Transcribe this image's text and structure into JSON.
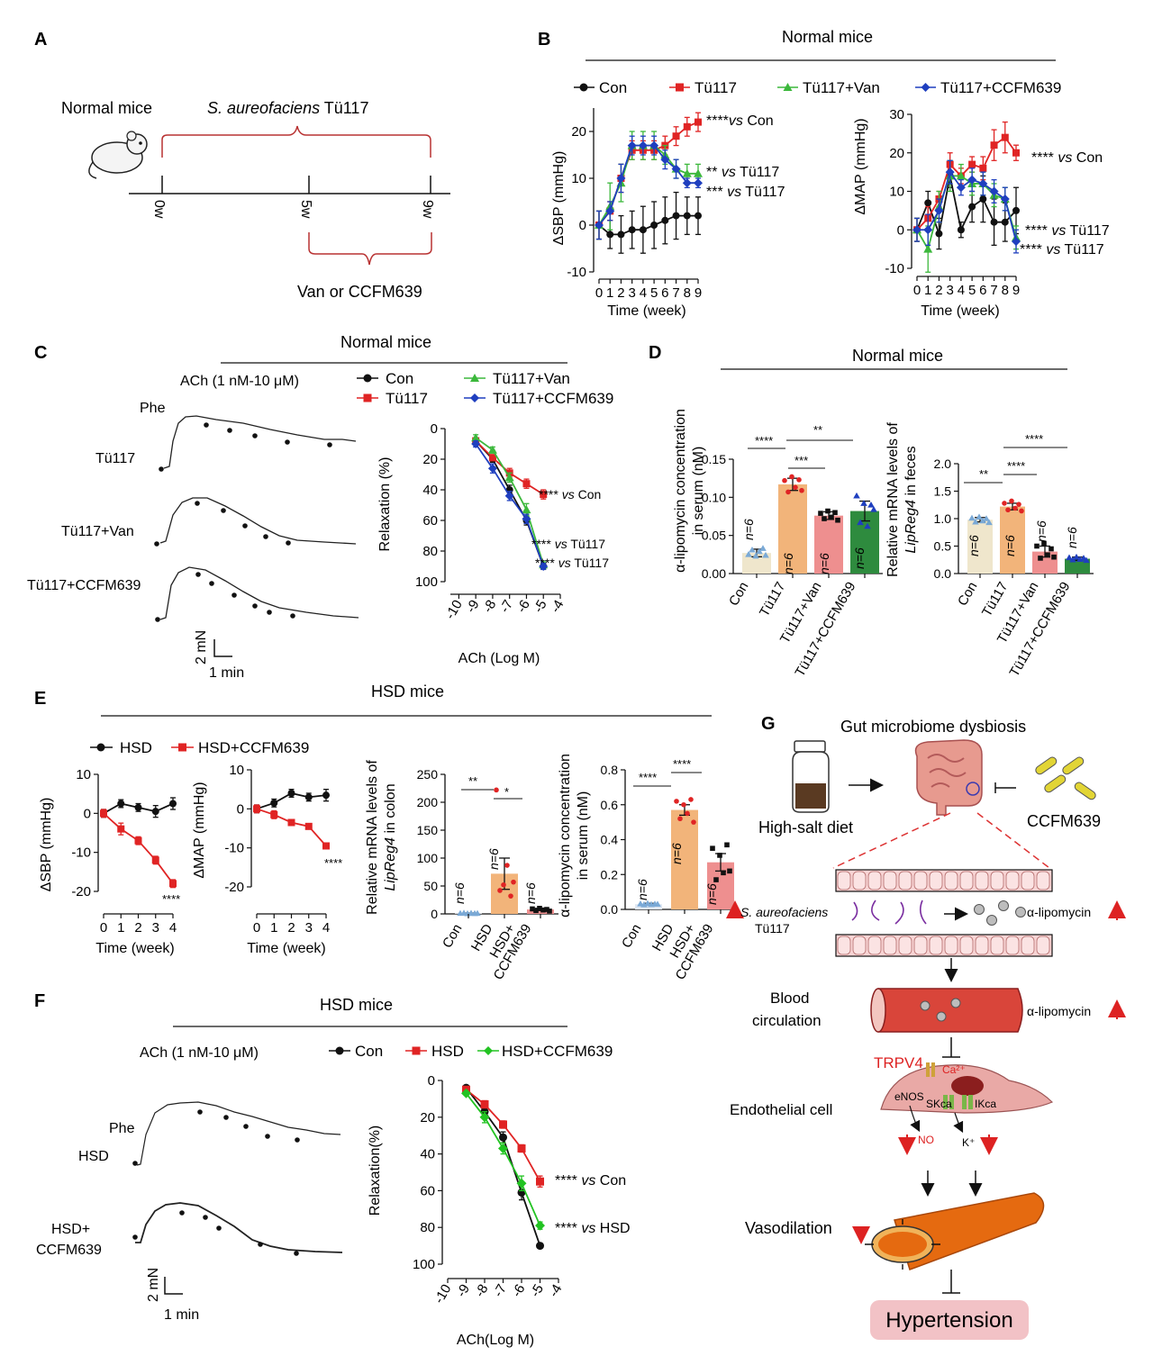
{
  "panel_letters": {
    "a": "A",
    "b": "B",
    "c": "C",
    "d": "D",
    "e": "E",
    "f": "F",
    "g": "G"
  },
  "colors": {
    "con": "#111111",
    "tu117": "#e02424",
    "van": "#3cb83c",
    "ccfm": "#1f3fbf",
    "hsd_ccfm_green": "#22c322",
    "tan": "#f2b47a",
    "pink": "#ee8f8f",
    "green_bar": "#2e8b3e",
    "bar_con": "#efe6cc",
    "bar_con_blue": "#7aa9d6"
  },
  "panelA": {
    "normal_mice": "Normal mice",
    "strain_italic": "S. aureofaciens",
    "strain_id": " Tü117",
    "ticks": [
      "0w",
      "5w",
      "9w"
    ],
    "treatment": "Van or CCFM639"
  },
  "panelB": {
    "title": "Normal mice",
    "legend": [
      "Con",
      "Tü117",
      "Tü117+Van",
      "Tü117+CCFM639"
    ],
    "sbp_ylabel": "ΔSBP (mmHg)",
    "map_ylabel": "ΔMAP (mmHg)",
    "xlabel": "Time (week)",
    "sbp_annotations": [
      {
        "stars": "****",
        "vs": "vs",
        "ref": " Con"
      },
      {
        "stars": "** ",
        "vs": "vs",
        "ref": " Tü117"
      },
      {
        "stars": "*** ",
        "vs": "vs",
        "ref": " Tü117"
      }
    ],
    "map_annotations": [
      {
        "stars": "**** ",
        "vs": "vs",
        "ref": " Con"
      },
      {
        "stars": "**** ",
        "vs": "vs",
        "ref": " Tü117"
      },
      {
        "stars": "**** ",
        "vs": "vs",
        "ref": " Tü117"
      }
    ]
  },
  "panelC": {
    "title": "Normal mice",
    "ach": "ACh (1 nM-10 μM)",
    "phe": "Phe",
    "trace_labels": [
      "Tü117",
      "Tü117+Van",
      "Tü117+CCFM639"
    ],
    "scale_y": "2 mN",
    "scale_x": "1 min",
    "legend": [
      "Con",
      "Tü117",
      "Tü117+Van",
      "Tü117+CCFM639"
    ],
    "ylabel": "Relaxation (%)",
    "xlabel": "ACh (Log M)",
    "annotations": [
      {
        "stars": "**** ",
        "vs": "vs",
        "ref": " Con"
      },
      {
        "stars": "**** ",
        "vs": "vs",
        "ref": " Tü117"
      },
      {
        "stars": "**** ",
        "vs": "vs",
        "ref": " Tü117"
      }
    ]
  },
  "panelD": {
    "title": "Normal mice",
    "serum_ylabel1": "α-lipomycin concentration",
    "serum_ylabel2": "in serum (nM)",
    "feces_ylabel1": "Relative mRNA levels of",
    "feces_ylabel2_italic": "LipReg4",
    "feces_ylabel2_rest": " in feces",
    "groups": [
      "Con",
      "Tü117",
      "Tü117+Van",
      "Tü117+CCFM639"
    ],
    "n_label": "n=6",
    "serum_sig": [
      "****",
      "***",
      "**"
    ],
    "feces_sig": [
      "**",
      "****",
      "****"
    ]
  },
  "panelE": {
    "title": "HSD mice",
    "legend": [
      "HSD",
      "HSD+CCFM639"
    ],
    "sbp_ylabel": "ΔSBP (mmHg)",
    "map_ylabel": "ΔMAP (mmHg)",
    "xlabel": "Time (week)",
    "sig": "****",
    "colon_ylabel1": "Relative mRNA levels of",
    "colon_ylabel2_italic": "LipReg4",
    "colon_ylabel2_rest": " in colon",
    "serum_ylabel1": "α-lipomycin concentration",
    "serum_ylabel2": "in serum (nM)",
    "groups": [
      "Con",
      "HSD",
      "HSD+",
      "CCFM639"
    ],
    "n_label": "n=6",
    "colon_sig": [
      "**",
      "*"
    ],
    "serum_sig": [
      "****",
      "****"
    ]
  },
  "panelF": {
    "title": "HSD mice",
    "ach": "ACh (1 nM-10 μM)",
    "legend": [
      "Con",
      "HSD",
      "HSD+CCFM639"
    ],
    "phe": "Phe",
    "trace_labels": [
      "HSD",
      "HSD+",
      "CCFM639"
    ],
    "scale_y": "2 mN",
    "scale_x": "1 min",
    "ylabel": "Relaxation(%)",
    "xlabel": "ACh(Log M)",
    "annotations": [
      {
        "stars": "**** ",
        "vs": "vs",
        "ref": " Con"
      },
      {
        "stars": "**** ",
        "vs": "vs",
        "ref": " HSD"
      }
    ]
  },
  "panelG": {
    "title": "Gut microbiome dysbiosis",
    "diet": "High-salt diet",
    "probiotic": "CCFM639",
    "strain_italic": "S. aureofaciens",
    "strain_id": "Tü117",
    "lipo": "α-lipomycin",
    "blood": [
      "Blood",
      "circulation"
    ],
    "trpv4": "TRPV4",
    "endo": "Endothelial cell",
    "enos": "eNOS",
    "sk": "SKca",
    "ik": "IKca",
    "no": "NO",
    "k": "K⁺",
    "ca": "Ca²⁺",
    "vaso": "Vasodilation",
    "hyper": "Hypertension"
  },
  "chart_data": [
    {
      "id": "B_SBP",
      "type": "line",
      "title": "Normal mice",
      "xlabel": "Time (week)",
      "ylabel": "ΔSBP (mmHg)",
      "ylim": [
        -10,
        25
      ],
      "xlim": [
        0,
        9
      ],
      "x": [
        0,
        1,
        2,
        3,
        4,
        5,
        6,
        7,
        8,
        9
      ],
      "series": [
        {
          "name": "Con",
          "values": [
            0,
            -2,
            -2,
            -1,
            -1,
            0,
            1,
            2,
            2,
            2
          ],
          "err": [
            3,
            3,
            4,
            4,
            5,
            5,
            5,
            5,
            4,
            4
          ]
        },
        {
          "name": "Tü117",
          "values": [
            0,
            3,
            10,
            16,
            16,
            16,
            17,
            19,
            21,
            22
          ],
          "err": [
            3,
            2,
            3,
            2,
            2,
            2,
            2,
            2,
            2,
            2
          ]
        },
        {
          "name": "Tü117+Van",
          "values": [
            0,
            4,
            9,
            17,
            17,
            17,
            15,
            12,
            11,
            11
          ],
          "err": [
            3,
            5,
            4,
            3,
            3,
            3,
            2,
            2,
            2,
            2
          ]
        },
        {
          "name": "Tü117+CCFM639",
          "values": [
            0,
            3,
            10,
            17,
            17,
            17,
            14,
            12,
            9,
            9
          ],
          "err": [
            3,
            2,
            3,
            2,
            2,
            2,
            2,
            2,
            1,
            1
          ]
        }
      ]
    },
    {
      "id": "B_MAP",
      "type": "line",
      "xlabel": "Time (week)",
      "ylabel": "ΔMAP (mmHg)",
      "ylim": [
        -10,
        30
      ],
      "xlim": [
        0,
        9
      ],
      "x": [
        0,
        1,
        2,
        3,
        4,
        5,
        6,
        7,
        8,
        9
      ],
      "series": [
        {
          "name": "Con",
          "values": [
            0,
            7,
            -1,
            14,
            0,
            6,
            8,
            2,
            2,
            5
          ],
          "err": [
            3,
            3,
            4,
            3,
            2,
            4,
            6,
            6,
            5,
            6
          ]
        },
        {
          "name": "Tü117",
          "values": [
            0,
            3,
            8,
            17,
            14,
            17,
            16,
            22,
            24,
            20
          ],
          "err": [
            3,
            3,
            2,
            3,
            2,
            2,
            3,
            4,
            4,
            2
          ]
        },
        {
          "name": "Tü117+Van",
          "values": [
            0,
            -5,
            6,
            14,
            14,
            12,
            12,
            9,
            8,
            -2
          ],
          "err": [
            3,
            6,
            4,
            4,
            3,
            3,
            3,
            3,
            3,
            3
          ]
        },
        {
          "name": "Tü117+CCFM639",
          "values": [
            0,
            0,
            5,
            15,
            11,
            13,
            12,
            10,
            8,
            -3
          ],
          "err": [
            3,
            4,
            3,
            3,
            2,
            3,
            3,
            3,
            3,
            3
          ]
        }
      ]
    },
    {
      "id": "C_curve",
      "type": "line",
      "xlabel": "ACh (Log M)",
      "ylabel": "Relaxation (%)",
      "ylim": [
        0,
        100
      ],
      "xlim": [
        -10,
        -4
      ],
      "x": [
        -9,
        -8,
        -7,
        -6,
        -5
      ],
      "series": [
        {
          "name": "Con",
          "values": [
            8,
            20,
            40,
            60,
            90
          ],
          "err": [
            2,
            2,
            3,
            3,
            2
          ]
        },
        {
          "name": "Tü117",
          "values": [
            8,
            19,
            29,
            36,
            43
          ],
          "err": [
            2,
            2,
            3,
            3,
            3
          ]
        },
        {
          "name": "Tü117+Van",
          "values": [
            6,
            14,
            32,
            53,
            89
          ],
          "err": [
            2,
            2,
            3,
            4,
            2
          ]
        },
        {
          "name": "Tü117+CCFM639",
          "values": [
            10,
            26,
            44,
            59,
            90
          ],
          "err": [
            2,
            3,
            3,
            3,
            2
          ]
        }
      ]
    },
    {
      "id": "D_serum",
      "type": "bar",
      "ylabel": "α-lipomycin concentration in serum (nM)",
      "ylim": [
        0,
        0.15
      ],
      "categories": [
        "Con",
        "Tü117",
        "Tü117+Van",
        "Tü117+CCFM639"
      ],
      "values": [
        0.027,
        0.117,
        0.076,
        0.082
      ],
      "err": [
        0.005,
        0.008,
        0.005,
        0.013
      ]
    },
    {
      "id": "D_feces",
      "type": "bar",
      "ylabel": "Relative mRNA levels of LipReg4 in feces",
      "ylim": [
        0,
        2.0
      ],
      "categories": [
        "Con",
        "Tü117",
        "Tü117+Van",
        "Tü117+CCFM639"
      ],
      "values": [
        0.98,
        1.22,
        0.4,
        0.27
      ],
      "err": [
        0.04,
        0.06,
        0.1,
        0.03
      ]
    },
    {
      "id": "E_SBP",
      "type": "line",
      "xlabel": "Time (week)",
      "ylabel": "ΔSBP (mmHg)",
      "ylim": [
        -20,
        10
      ],
      "xlim": [
        0,
        4
      ],
      "x": [
        0,
        1,
        2,
        3,
        4
      ],
      "series": [
        {
          "name": "HSD",
          "values": [
            0,
            2.5,
            1.5,
            0.5,
            2.5
          ],
          "err": [
            1,
            1,
            1,
            1.5,
            1.5
          ]
        },
        {
          "name": "HSD+CCFM639",
          "values": [
            0,
            -4,
            -7,
            -12,
            -18
          ],
          "err": [
            1,
            1.5,
            1,
            1,
            1
          ]
        }
      ]
    },
    {
      "id": "E_MAP",
      "type": "line",
      "xlabel": "Time (week)",
      "ylabel": "ΔMAP (mmHg)",
      "ylim": [
        -20,
        10
      ],
      "xlim": [
        0,
        4
      ],
      "x": [
        0,
        1,
        2,
        3,
        4
      ],
      "series": [
        {
          "name": "HSD",
          "values": [
            0,
            1.5,
            4,
            3,
            3.5
          ],
          "err": [
            1,
            1,
            1,
            1,
            1.5
          ]
        },
        {
          "name": "HSD+CCFM639",
          "values": [
            0,
            -1.5,
            -3.5,
            -4.5,
            -9.5
          ],
          "err": [
            1,
            1,
            0.5,
            0.5,
            0.5
          ]
        }
      ]
    },
    {
      "id": "E_colon",
      "type": "bar",
      "ylabel": "Relative mRNA levels of LipReg4 in colon",
      "ylim": [
        0,
        250
      ],
      "categories": [
        "Con",
        "HSD",
        "HSD+CCFM639"
      ],
      "values": [
        1,
        72,
        8
      ],
      "err": [
        0.5,
        28,
        2
      ]
    },
    {
      "id": "E_serum",
      "type": "bar",
      "ylabel": "α-lipomycin concentration in serum (nM)",
      "ylim": [
        0,
        0.8
      ],
      "categories": [
        "Con",
        "HSD",
        "HSD+CCFM639"
      ],
      "values": [
        0.03,
        0.57,
        0.27
      ],
      "err": [
        0.005,
        0.03,
        0.05
      ]
    },
    {
      "id": "F_curve",
      "type": "line",
      "xlabel": "ACh(Log M)",
      "ylabel": "Relaxation(%)",
      "ylim": [
        0,
        100
      ],
      "xlim": [
        -10,
        -4
      ],
      "x": [
        -9,
        -8,
        -7,
        -6,
        -5
      ],
      "series": [
        {
          "name": "Con",
          "values": [
            4,
            17,
            31,
            61,
            90
          ],
          "err": [
            1,
            2,
            3,
            4,
            1
          ]
        },
        {
          "name": "HSD",
          "values": [
            5,
            13,
            24,
            37,
            55
          ],
          "err": [
            1,
            2,
            2,
            2,
            3
          ]
        },
        {
          "name": "HSD+CCFM639",
          "values": [
            7,
            20,
            37,
            56,
            79
          ],
          "err": [
            1,
            3,
            3,
            4,
            2
          ]
        }
      ]
    }
  ]
}
